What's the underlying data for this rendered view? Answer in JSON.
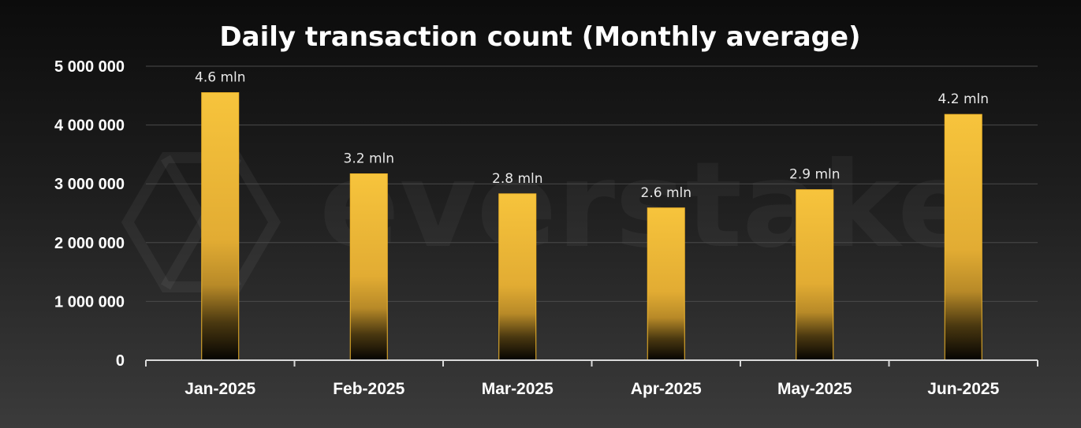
{
  "chart_data": {
    "type": "bar",
    "title": "Daily transaction count (Monthly average)",
    "categories": [
      "Jan-2025",
      "Feb-2025",
      "Mar-2025",
      "Apr-2025",
      "May-2025",
      "Jun-2025"
    ],
    "values": [
      4550000,
      3170000,
      2830000,
      2590000,
      2900000,
      4180000
    ],
    "data_labels": [
      "4.6 mln",
      "3.2 mln",
      "2.8 mln",
      "2.6 mln",
      "2.9 mln",
      "4.2 mln"
    ],
    "ylim": [
      0,
      5000000
    ],
    "yticks": [
      0,
      1000000,
      2000000,
      3000000,
      4000000,
      5000000
    ],
    "ytick_labels": [
      "0",
      "1 000 000",
      "2 000 000",
      "3 000 000",
      "4 000 000",
      "5 000 000"
    ],
    "xlabel": "",
    "ylabel": "",
    "grid": true,
    "legend": "none",
    "colors": {
      "bar_top": "#f6c13a",
      "bar_bottom": "#000000",
      "bar_edge": "#f0b52a",
      "grid": "#4a4a4a",
      "axis": "#d9d9d9"
    }
  },
  "watermark": {
    "text": "everstake"
  }
}
